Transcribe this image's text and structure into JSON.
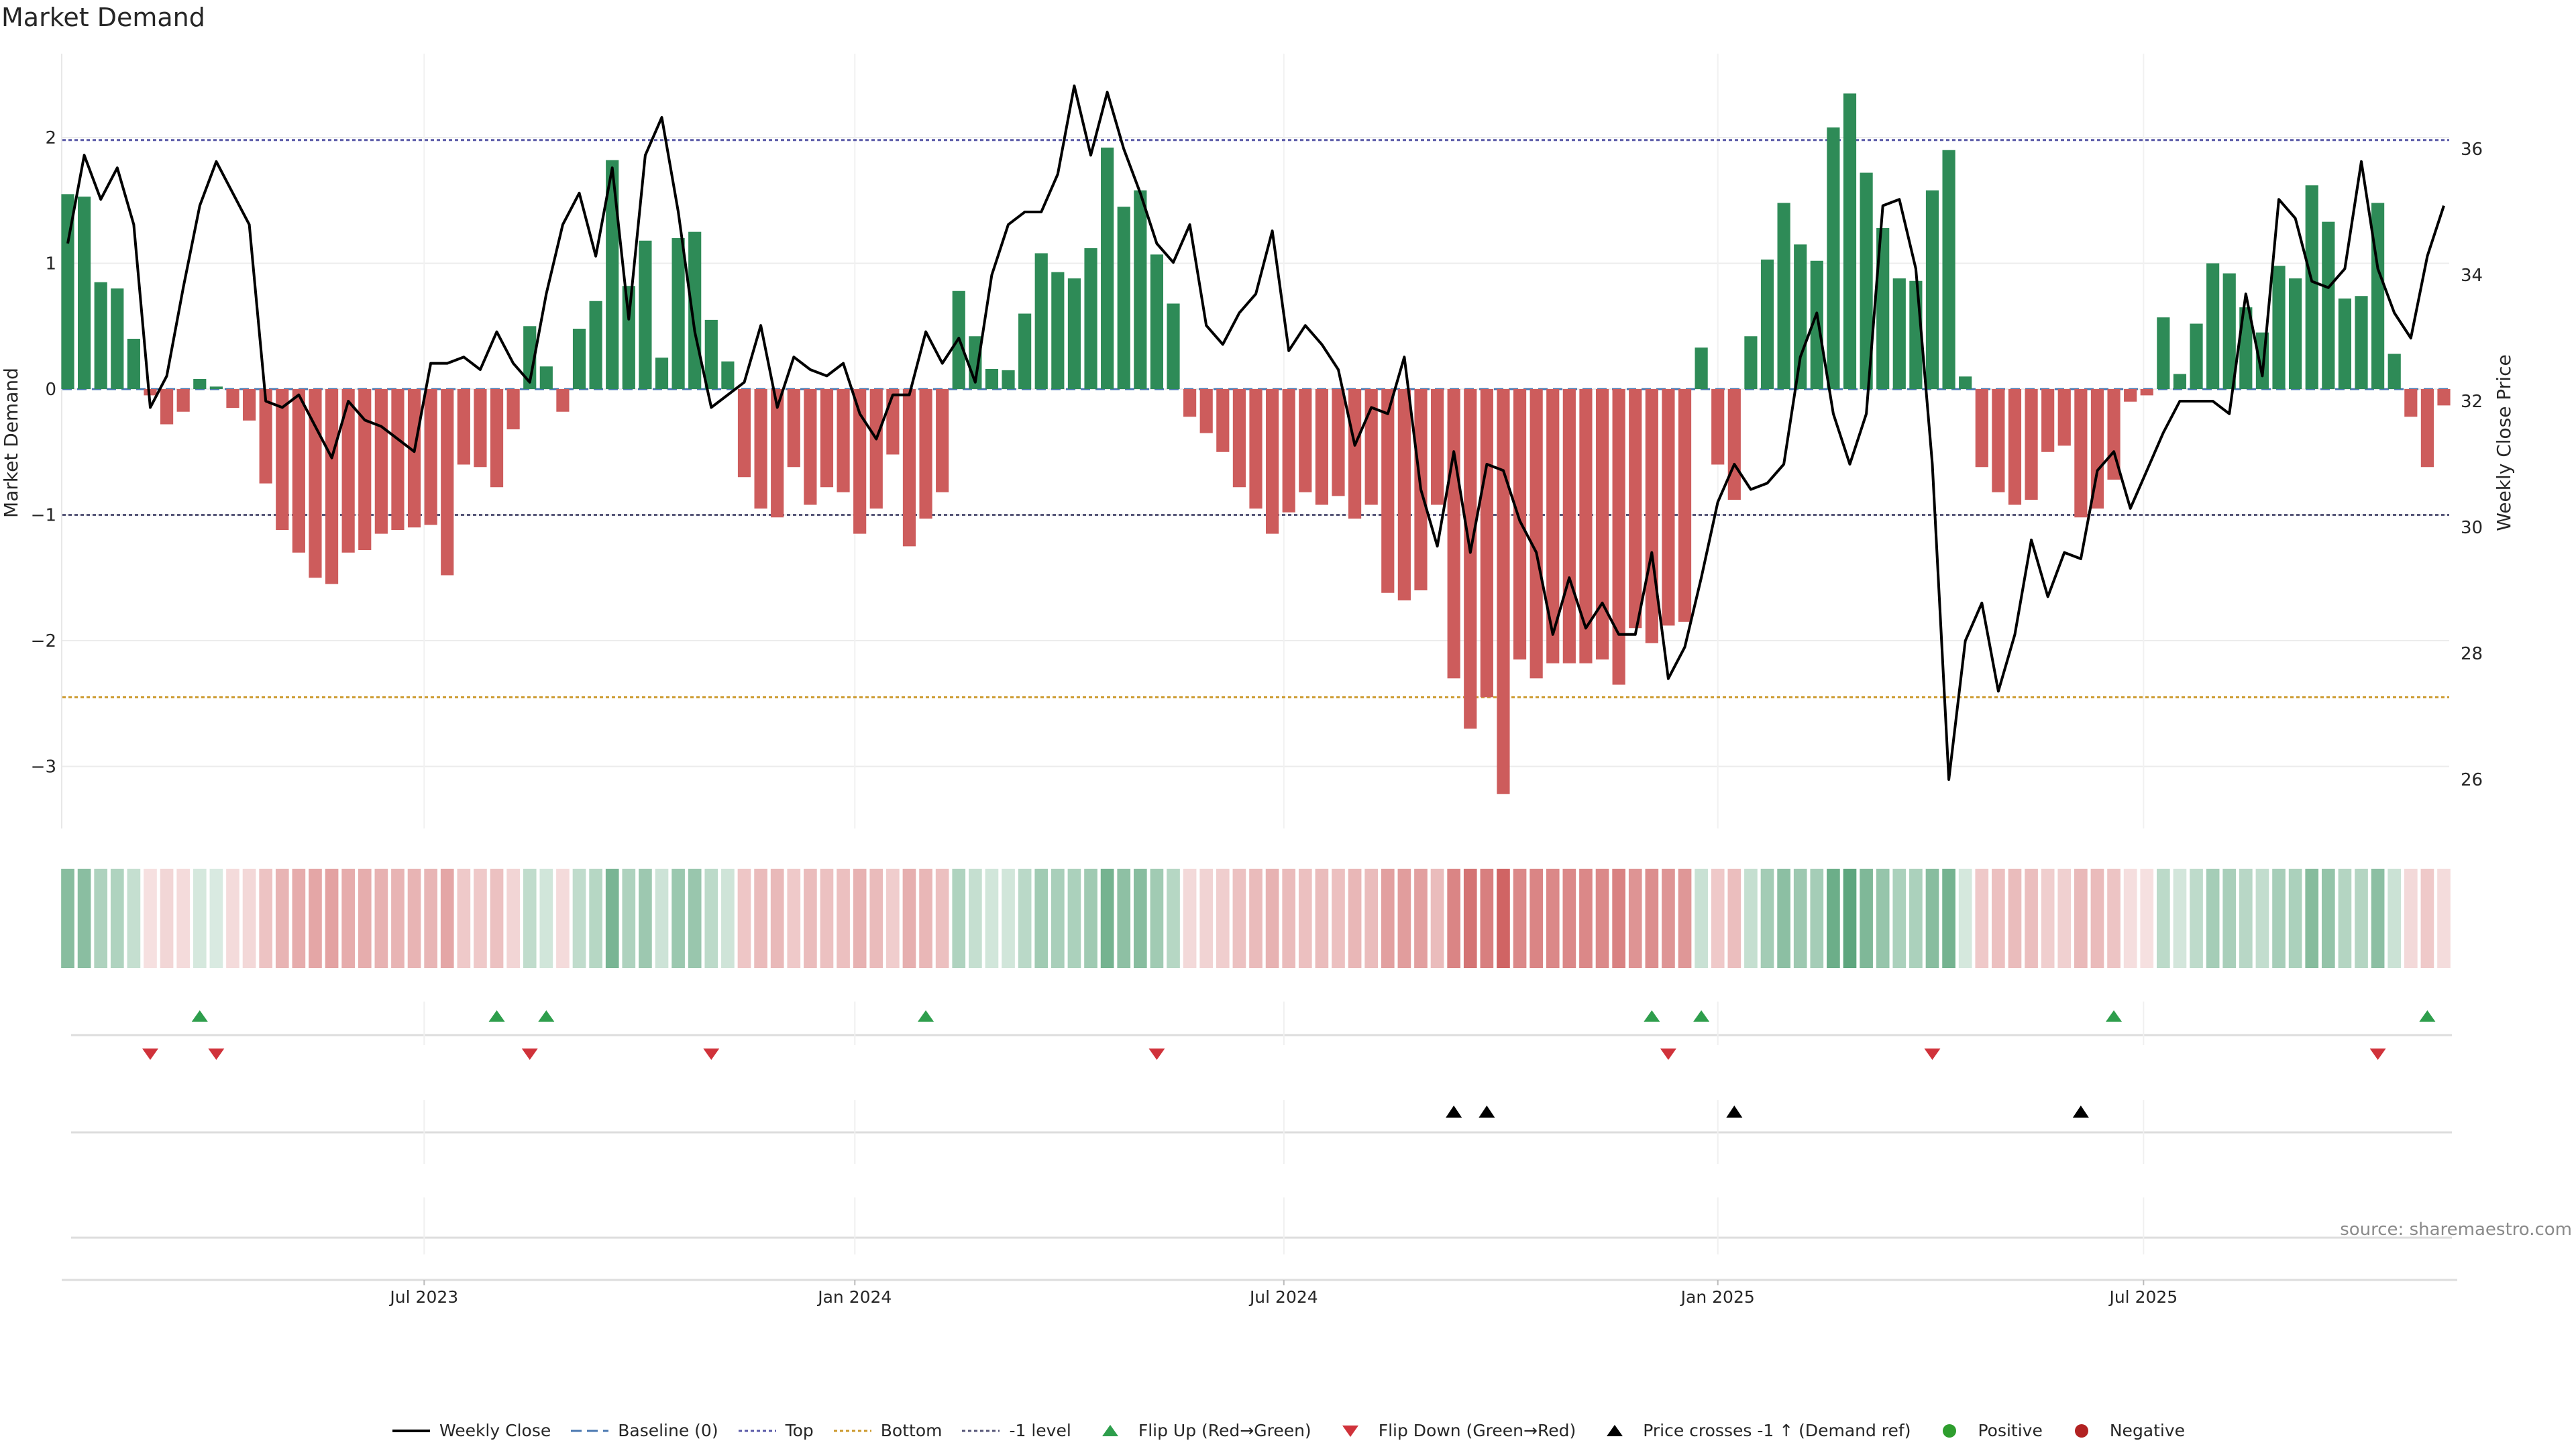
{
  "title": "Market Demand",
  "source": "source: sharemaestro.com",
  "colors": {
    "positive": "#2e8b57",
    "negative": "#cd5c5c",
    "price": "#000000",
    "top": "#5a5aa8",
    "bottom": "#cc9a2e",
    "minus1": "#555577",
    "baseline": "#4a78b0",
    "flip_up": "#2e9e4c",
    "flip_down": "#d0323a",
    "cross": "#000000",
    "legend_positive": "#2e9e2e",
    "legend_negative": "#b22222"
  },
  "legend": [
    {
      "key": "price",
      "label": "Weekly Close"
    },
    {
      "key": "baseline",
      "label": "Baseline (0)"
    },
    {
      "key": "top",
      "label": "Top"
    },
    {
      "key": "bottom",
      "label": "Bottom"
    },
    {
      "key": "minus1",
      "label": "-1 level"
    },
    {
      "key": "flip_up",
      "label": "Flip Up (Red→Green)"
    },
    {
      "key": "flip_down",
      "label": "Flip Down (Green→Red)"
    },
    {
      "key": "cross",
      "label": "Price crosses -1 ↑ (Demand ref)"
    },
    {
      "key": "positive",
      "label": "Positive"
    },
    {
      "key": "negative",
      "label": "Negative"
    }
  ],
  "chart_data": {
    "type": "bar",
    "title": "Market Demand",
    "ylabel": "Market Demand",
    "y2label": "Weekly Close Price",
    "ylim": [
      -3.5,
      2.7
    ],
    "y2lim": [
      25.0,
      37.5
    ],
    "yticks": [
      2,
      1,
      0,
      -1,
      -2,
      -3
    ],
    "y2ticks": [
      36,
      34,
      32,
      30,
      28,
      26
    ],
    "ytick_labels": [
      "2",
      "1",
      "0",
      "−1",
      "−2",
      "−3"
    ],
    "y2tick_labels": [
      "36",
      "34",
      "32",
      "30",
      "28",
      "26"
    ],
    "levels": {
      "top": 1.98,
      "bottom": -2.45,
      "minus1": -1.0,
      "baseline": 0
    },
    "x_start_index": 0,
    "x_ticks": [
      {
        "label": "Jul 2023",
        "index": 21.6
      },
      {
        "label": "Jan 2024",
        "index": 47.7
      },
      {
        "label": "Jul 2024",
        "index": 73.7
      },
      {
        "label": "Jan 2025",
        "index": 100.0
      },
      {
        "label": "Jul 2025",
        "index": 125.8
      }
    ],
    "demand": [
      1.55,
      1.53,
      0.85,
      0.8,
      0.4,
      -0.05,
      -0.28,
      -0.18,
      0.08,
      0.02,
      -0.15,
      -0.25,
      -0.75,
      -1.12,
      -1.3,
      -1.5,
      -1.55,
      -1.3,
      -1.28,
      -1.15,
      -1.12,
      -1.1,
      -1.08,
      -1.48,
      -0.6,
      -0.62,
      -0.78,
      -0.32,
      0.5,
      0.18,
      -0.18,
      0.48,
      0.7,
      1.82,
      0.82,
      1.18,
      0.25,
      1.2,
      1.25,
      0.55,
      0.22,
      -0.7,
      -0.95,
      -1.02,
      -0.62,
      -0.92,
      -0.78,
      -0.82,
      -1.15,
      -0.95,
      -0.52,
      -1.25,
      -1.03,
      -0.82,
      0.78,
      0.42,
      0.16,
      0.15,
      0.6,
      1.08,
      0.93,
      0.88,
      1.12,
      1.92,
      1.45,
      1.58,
      1.07,
      0.68,
      -0.22,
      -0.35,
      -0.5,
      -0.78,
      -0.95,
      -1.15,
      -0.98,
      -0.82,
      -0.92,
      -0.85,
      -1.03,
      -0.92,
      -1.62,
      -1.68,
      -1.6,
      -0.92,
      -2.3,
      -2.7,
      -2.45,
      -3.22,
      -2.15,
      -2.3,
      -2.18,
      -2.18,
      -2.18,
      -2.15,
      -2.35,
      -1.9,
      -2.02,
      -1.88,
      -1.85,
      0.33,
      -0.6,
      -0.88,
      0.42,
      1.03,
      1.48,
      1.15,
      1.02,
      2.08,
      2.35,
      1.72,
      1.28,
      0.88,
      0.86,
      1.58,
      1.9,
      0.1,
      -0.62,
      -0.82,
      -0.92,
      -0.88,
      -0.5,
      -0.45,
      -1.02,
      -0.95,
      -0.72,
      -0.1,
      -0.05,
      0.57,
      0.12,
      0.52,
      1.0,
      0.92,
      0.65,
      0.45,
      0.98,
      0.88,
      1.62,
      1.33,
      0.72,
      0.74,
      1.48,
      0.28,
      -0.22,
      -0.62,
      -0.13
    ],
    "price": [
      34.5,
      35.9,
      35.2,
      35.7,
      34.8,
      31.9,
      32.4,
      33.8,
      35.1,
      35.8,
      35.3,
      34.8,
      32.0,
      31.9,
      32.1,
      31.6,
      31.1,
      32.0,
      31.7,
      31.6,
      31.4,
      31.2,
      32.6,
      32.6,
      32.7,
      32.5,
      33.1,
      32.6,
      32.3,
      33.7,
      34.8,
      35.3,
      34.3,
      35.7,
      33.3,
      35.9,
      36.5,
      35.0,
      33.1,
      31.9,
      32.1,
      32.3,
      33.2,
      31.9,
      32.7,
      32.5,
      32.4,
      32.6,
      31.8,
      31.4,
      32.1,
      32.1,
      33.1,
      32.6,
      33.0,
      32.3,
      34.0,
      34.8,
      35.0,
      35.0,
      35.6,
      37.0,
      35.9,
      36.9,
      36.0,
      35.3,
      34.5,
      34.2,
      34.8,
      33.2,
      32.9,
      33.4,
      33.7,
      34.7,
      32.8,
      33.2,
      32.9,
      32.5,
      31.3,
      31.9,
      31.8,
      32.7,
      30.6,
      29.7,
      31.2,
      29.6,
      31.0,
      30.9,
      30.1,
      29.6,
      28.3,
      29.2,
      28.4,
      28.8,
      28.3,
      28.3,
      29.6,
      27.6,
      28.1,
      29.2,
      30.4,
      31.0,
      30.6,
      30.7,
      31.0,
      32.7,
      33.4,
      31.8,
      31.0,
      31.8,
      35.1,
      35.2,
      34.1,
      31.0,
      26.0,
      28.2,
      28.8,
      27.4,
      28.3,
      29.8,
      28.9,
      29.6,
      29.5,
      30.9,
      31.2,
      30.3,
      30.9,
      31.5,
      32.0,
      32.0,
      32.0,
      31.8,
      33.7,
      32.4,
      35.2,
      34.9,
      33.9,
      33.8,
      34.1,
      35.8,
      34.1,
      33.4,
      33.0,
      34.3,
      35.1
    ],
    "flip_up": [
      8,
      26,
      29,
      52,
      96,
      99,
      124,
      143
    ],
    "flip_down": [
      5,
      9,
      28,
      39,
      66,
      97,
      113,
      140
    ],
    "price_cross": [
      84,
      86,
      101,
      122
    ]
  }
}
